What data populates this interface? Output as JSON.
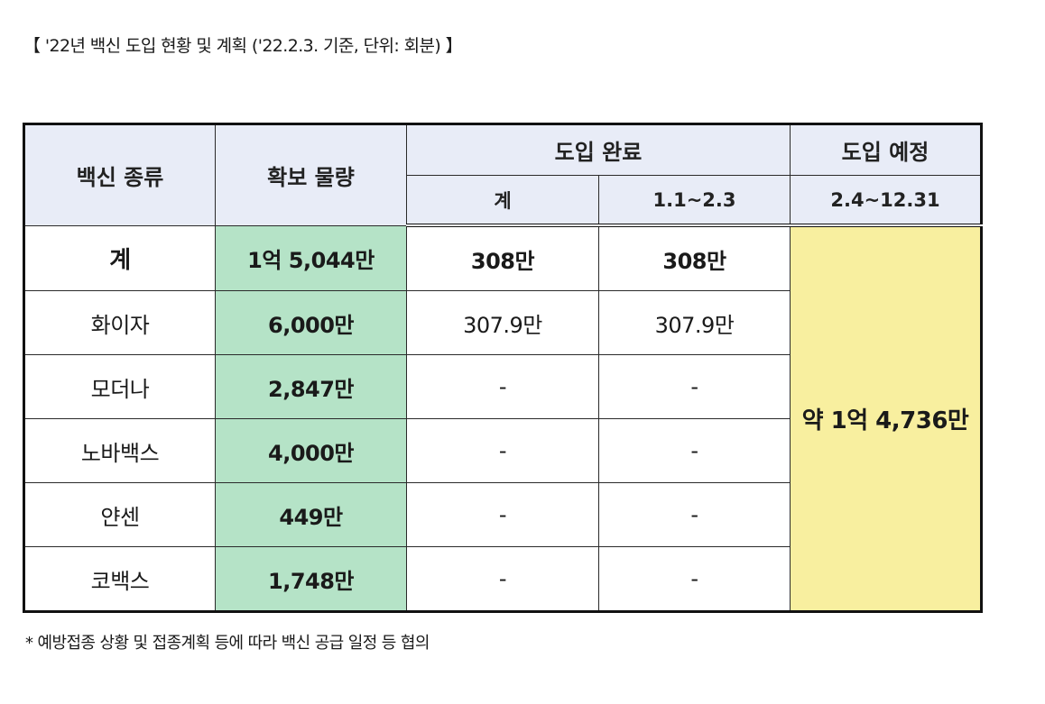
{
  "caption": "【 '22년 백신 도입 현황 및 계획 ('22.2.3. 기준, 단위: 회분) 】",
  "table": {
    "headers": {
      "vaccine_type": "백신 종류",
      "secured_amount": "확보 물량",
      "introduced_done": "도입 완료",
      "introduced_planned": "도입 예정",
      "sub_total": "계",
      "sub_period_done": "1.1~2.3",
      "sub_period_planned": "2.4~12.31"
    },
    "total_row": {
      "name": "계",
      "secured": "1억 5,044만",
      "done_total": "308만",
      "done_period": "308만"
    },
    "planned_merged": "약 1억 4,736만",
    "rows": [
      {
        "name": "화이자",
        "secured": "6,000만",
        "done_total": "307.9만",
        "done_period": "307.9만"
      },
      {
        "name": "모더나",
        "secured": "2,847만",
        "done_total": "-",
        "done_period": "-"
      },
      {
        "name": "노바백스",
        "secured": "4,000만",
        "done_total": "-",
        "done_period": "-"
      },
      {
        "name": "얀센",
        "secured": "449만",
        "done_total": "-",
        "done_period": "-"
      },
      {
        "name": "코백스",
        "secured": "1,748만",
        "done_total": "-",
        "done_period": "-"
      }
    ]
  },
  "footnote": "* 예방접종 상황 및 접종계획 등에 따라 백신 공급 일정 등 협의",
  "colors": {
    "header_bg": "#e8ecf7",
    "secured_bg": "#b5e3c7",
    "planned_bg": "#f8ef9f",
    "border": "#111111"
  }
}
